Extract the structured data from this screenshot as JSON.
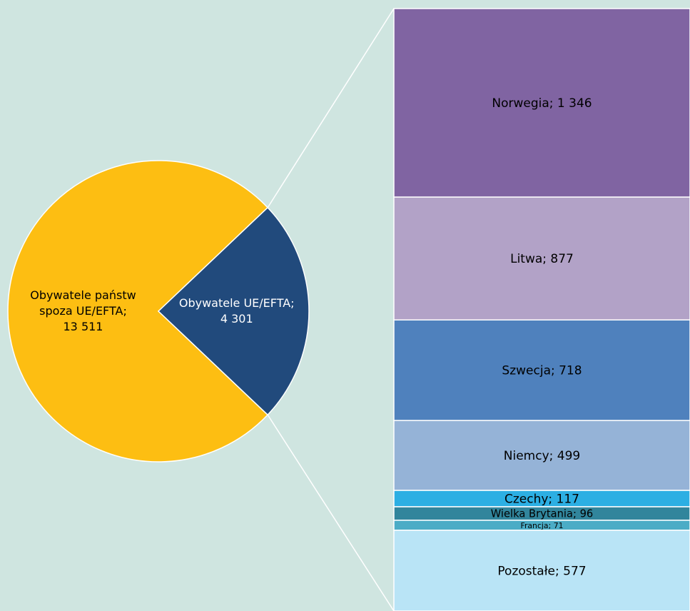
{
  "chart_data": [
    {
      "type": "pie",
      "values": [
        13511,
        4301
      ],
      "value_labels": [
        "Obywatele państw\nspoza UE/EFTA;\n13 511",
        "Obywatele UE/EFTA;\n4 301"
      ],
      "colors": [
        "#fdbe12",
        "#214a7c"
      ],
      "label_colors": [
        "#000000",
        "#ffffff"
      ]
    },
    {
      "type": "stacked_bar",
      "values": [
        1346,
        877,
        718,
        499,
        117,
        96,
        71,
        577
      ],
      "value_labels": [
        "Norwegia; 1 346",
        "Litwa; 877",
        "Szwecja; 718",
        "Niemcy; 499",
        "Czechy; 117",
        "Wielka Brytania; 96",
        "Francja; 71",
        "Pozostałe; 577"
      ],
      "colors": [
        "#8064a2",
        "#b2a2c7",
        "#4f81bd",
        "#95b3d7",
        "#2cafe3",
        "#31859c",
        "#4bacc6",
        "#b9e4f6"
      ]
    }
  ]
}
